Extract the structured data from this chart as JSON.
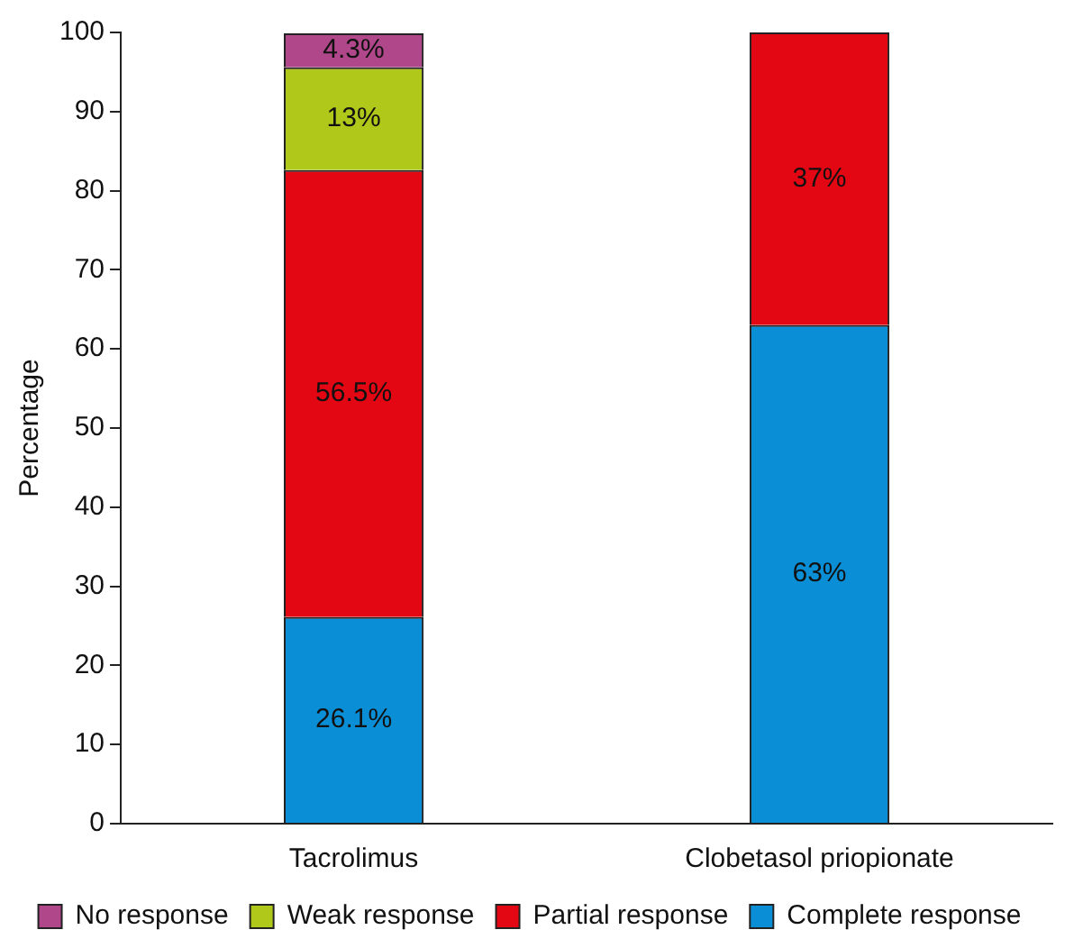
{
  "chart_data": {
    "type": "bar",
    "stacked": true,
    "ylabel": "Percentage",
    "categories": [
      "Tacrolimus",
      "Clobetasol priopionate"
    ],
    "series": [
      {
        "name": "Complete response",
        "color": "#0a8fd6",
        "values": [
          26.1,
          63
        ],
        "value_labels": [
          "26.1%",
          "63%"
        ]
      },
      {
        "name": "Partial response",
        "color": "#e30613",
        "values": [
          56.5,
          37
        ],
        "value_labels": [
          "56.5%",
          "37%"
        ]
      },
      {
        "name": "Weak response",
        "color": "#b0c81a",
        "values": [
          13,
          null
        ],
        "value_labels": [
          "13%",
          null
        ]
      },
      {
        "name": "No response",
        "color": "#b0478a",
        "values": [
          4.3,
          null
        ],
        "value_labels": [
          "4.3%",
          null
        ]
      }
    ],
    "ylim": [
      0,
      100
    ],
    "yticks": [
      0,
      10,
      20,
      30,
      40,
      50,
      60,
      70,
      80,
      90,
      100
    ],
    "grid": false,
    "legend": "bottom"
  }
}
